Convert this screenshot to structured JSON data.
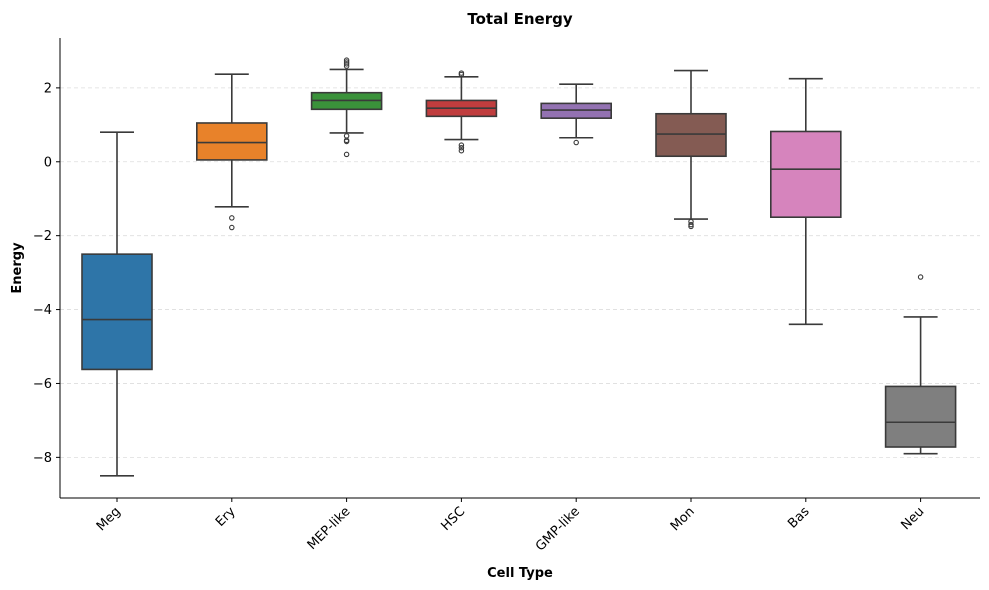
{
  "chart_data": {
    "type": "box",
    "title": "Total Energy",
    "xlabel": "Cell Type",
    "ylabel": "Energy",
    "ylim": [
      -9.1,
      3.35
    ],
    "yticks": [
      -8,
      -6,
      -4,
      -2,
      0,
      2
    ],
    "ytick_labels": [
      "−8",
      "−6",
      "−4",
      "−2",
      "0",
      "2"
    ],
    "grid": "horizontal dashed",
    "categories": [
      "Meg",
      "Ery",
      "MEP-like",
      "HSC",
      "GMP-like",
      "Mon",
      "Bas",
      "Neu"
    ],
    "boxes": [
      {
        "category": "Meg",
        "whisker_low": -8.5,
        "q1": -5.62,
        "median": -4.27,
        "q3": -2.5,
        "whisker_high": 0.8,
        "outliers": [],
        "color": "#2e75a8"
      },
      {
        "category": "Ery",
        "whisker_low": -1.22,
        "q1": 0.05,
        "median": 0.52,
        "q3": 1.05,
        "whisker_high": 2.37,
        "outliers": [
          -1.52,
          -1.78
        ],
        "color": "#e8822a"
      },
      {
        "category": "MEP-like",
        "whisker_low": 0.78,
        "q1": 1.42,
        "median": 1.66,
        "q3": 1.87,
        "whisker_high": 2.5,
        "outliers": [
          2.59,
          2.65,
          2.7,
          2.75,
          0.7,
          0.58,
          0.55,
          0.2
        ],
        "color": "#3a923a"
      },
      {
        "category": "HSC",
        "whisker_low": 0.6,
        "q1": 1.23,
        "median": 1.45,
        "q3": 1.66,
        "whisker_high": 2.3,
        "outliers": [
          2.36,
          2.4,
          0.45,
          0.38,
          0.3
        ],
        "color": "#c03d3e"
      },
      {
        "category": "GMP-like",
        "whisker_low": 0.65,
        "q1": 1.18,
        "median": 1.4,
        "q3": 1.58,
        "whisker_high": 2.1,
        "outliers": [
          0.52
        ],
        "color": "#9372b2"
      },
      {
        "category": "Mon",
        "whisker_low": -1.55,
        "q1": 0.15,
        "median": 0.75,
        "q3": 1.3,
        "whisker_high": 2.47,
        "outliers": [
          -1.62,
          -1.7,
          -1.75
        ],
        "color": "#845b53"
      },
      {
        "category": "Bas",
        "whisker_low": -4.4,
        "q1": -1.5,
        "median": -0.2,
        "q3": 0.82,
        "whisker_high": 2.25,
        "outliers": [],
        "color": "#d684bd"
      },
      {
        "category": "Neu",
        "whisker_low": -7.9,
        "q1": -7.72,
        "median": -7.05,
        "q3": -6.08,
        "whisker_high": -4.2,
        "outliers": [
          -3.12
        ],
        "color": "#7f7f7f"
      }
    ]
  }
}
